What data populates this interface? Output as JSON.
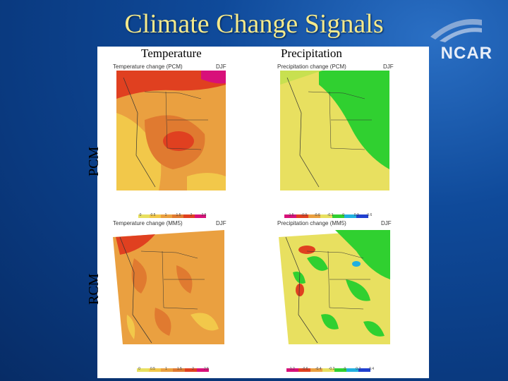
{
  "title": "Climate Change Signals",
  "logo": "NCAR",
  "columns": {
    "temperature": "Temperature",
    "precipitation": "Precipitation"
  },
  "rows": {
    "pcm": "PCM",
    "rcm": "RCM"
  },
  "maps": {
    "pcm_temp": {
      "title": "Temperature change (PCM)",
      "season": "DJF",
      "ticks": [
        "0",
        "0.5",
        "1",
        "1.5",
        "2",
        "2.5"
      ]
    },
    "pcm_precip": {
      "title": "Precipitation change (PCM)",
      "season": "DJF",
      "ticks": [
        "-1.5",
        "-0.9",
        "-0.6",
        "-0.3",
        "0",
        "0.3",
        "0.6"
      ]
    },
    "rcm_temp": {
      "title": "Temperature change (MM5)",
      "season": "DJF",
      "ticks": [
        "0",
        "0.5",
        "1",
        "1.5",
        "2",
        "2.5"
      ]
    },
    "rcm_precip": {
      "title": "Precipitation change (MM5)",
      "season": "DJF",
      "ticks": [
        "-1.2",
        "-0.6",
        "-0.4",
        "-0.2",
        "0",
        "0.2",
        "0.4"
      ]
    }
  },
  "colors": {
    "background": "#0a3a80",
    "title": "#f4e98c",
    "temp_scale": [
      "#e8e060",
      "#f2c84a",
      "#eaa040",
      "#e07a30",
      "#e04020",
      "#d8107a"
    ],
    "precip_scale": [
      "#d8107a",
      "#e04020",
      "#eaa040",
      "#e8e060",
      "#30d030",
      "#20b0e0",
      "#2040d0"
    ]
  }
}
